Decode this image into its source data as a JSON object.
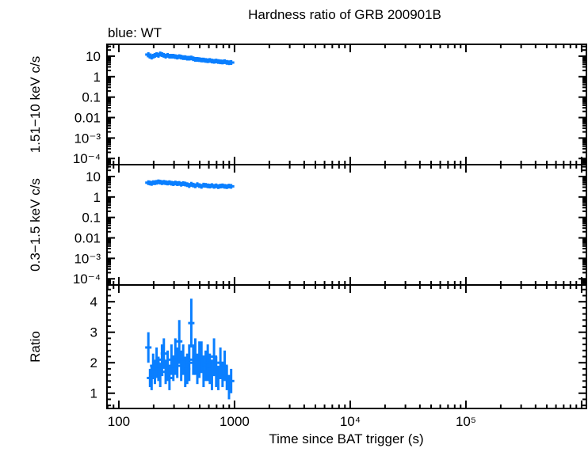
{
  "chart_data": [
    {
      "type": "scatter",
      "title": "Hardness ratio of GRB 200901B",
      "subtitle": "blue: WT",
      "ylabel": "1.51−10 keV c/s",
      "yscale": "log",
      "ylim": [
        5e-05,
        38
      ],
      "yticks": [
        "10",
        "1",
        "0.1",
        "0.01",
        "10⁻³",
        "10⁻⁴"
      ],
      "x": [
        180,
        186,
        192,
        198,
        205,
        212,
        220,
        228,
        236,
        245,
        254,
        264,
        274,
        285,
        296,
        308,
        320,
        333,
        346,
        360,
        375,
        390,
        406,
        423,
        440,
        458,
        477,
        497,
        518,
        540,
        563,
        587,
        612,
        638,
        665,
        694,
        724,
        755,
        788,
        822,
        858,
        896,
        935
      ],
      "values": [
        12,
        10,
        9,
        10,
        11,
        12,
        11,
        13,
        12,
        11,
        10,
        11,
        10,
        10,
        10,
        9.5,
        9,
        9.5,
        9,
        8.5,
        8.5,
        8,
        8,
        8.2,
        7.5,
        7,
        7,
        6.8,
        6.5,
        6.5,
        6.2,
        6,
        6.2,
        5.8,
        5.6,
        5.8,
        5.5,
        5.3,
        5.2,
        5.4,
        5,
        4.8,
        4.9
      ],
      "series_color": "#0a7fff"
    },
    {
      "type": "scatter",
      "ylabel": "0.3−1.5 keV c/s",
      "yscale": "log",
      "ylim": [
        5e-05,
        38
      ],
      "yticks": [
        "10",
        "1",
        "0.1",
        "0.01",
        "10⁻³",
        "10⁻⁴"
      ],
      "values": [
        5,
        4.8,
        4.6,
        5,
        5,
        5.2,
        5.5,
        5.3,
        5,
        5.2,
        5,
        4.8,
        5,
        4.7,
        4.5,
        4.8,
        4.5,
        4.6,
        4.2,
        4.5,
        4.3,
        4,
        3.6,
        4.2,
        3.8,
        3.5,
        4,
        3.6,
        3.3,
        3.8,
        3.7,
        3.5,
        3.4,
        3.6,
        3.3,
        3.5,
        3.2,
        3.4,
        3.5,
        3.3,
        3.2,
        3.4,
        3.3
      ],
      "series_color": "#0a7fff"
    },
    {
      "type": "scatter",
      "ylabel": "Ratio",
      "xlabel": "Time since BAT trigger (s)",
      "xscale": "log",
      "xlim": [
        79,
        1100000
      ],
      "xticks": [
        "100",
        "1000",
        "10⁴",
        "10⁵"
      ],
      "yticks": [
        "1",
        "2",
        "3",
        "4"
      ],
      "ylim": [
        0.5,
        4.55
      ],
      "values": [
        2.5,
        1.5,
        1.5,
        1.9,
        1.7,
        2.0,
        1.8,
        1.6,
        2.1,
        2.3,
        1.7,
        1.9,
        1.5,
        2.1,
        1.8,
        2.2,
        2.0,
        2.7,
        1.9,
        2.1,
        1.7,
        1.8,
        2.0,
        3.3,
        2.1,
        2.2,
        1.8,
        2.1,
        2.2,
        1.7,
        1.9,
        2.0,
        1.8,
        1.6,
        2.2,
        1.7,
        1.5,
        2.0,
        1.6,
        1.9,
        1.5,
        1.2,
        1.4
      ],
      "errors": [
        0.5,
        0.3,
        0.4,
        0.4,
        0.4,
        0.5,
        0.4,
        0.4,
        0.5,
        0.5,
        0.4,
        0.5,
        0.4,
        0.5,
        0.4,
        0.6,
        0.5,
        0.7,
        0.5,
        0.5,
        0.5,
        0.5,
        0.6,
        0.8,
        0.5,
        0.6,
        0.5,
        0.6,
        0.5,
        0.5,
        0.5,
        0.6,
        0.5,
        0.5,
        0.6,
        0.5,
        0.4,
        0.5,
        0.4,
        0.5,
        0.4,
        0.4,
        0.4
      ],
      "series_color": "#0a7fff"
    }
  ]
}
